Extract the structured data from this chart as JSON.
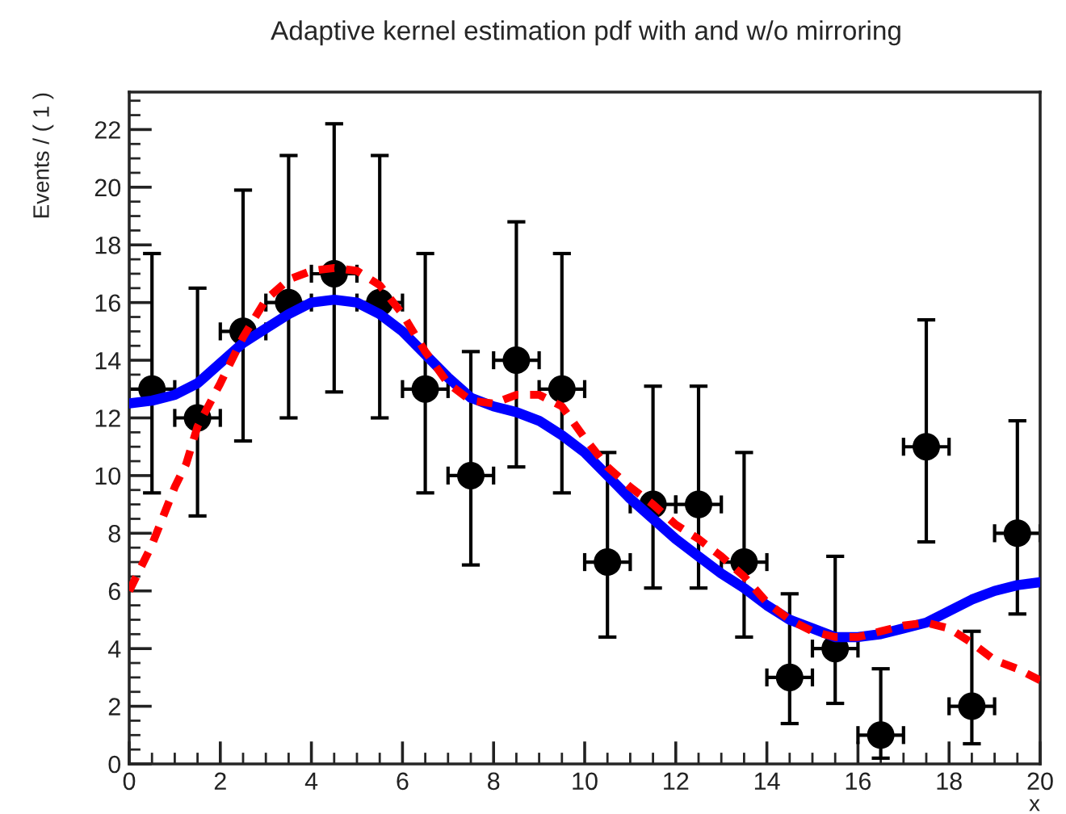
{
  "chart_data": {
    "type": "scatter",
    "title": "Adaptive kernel estimation pdf with and w/o mirroring",
    "xlabel": "x",
    "ylabel": "Events / ( 1 )",
    "xlim": [
      0,
      20
    ],
    "ylim": [
      0,
      23.3
    ],
    "xticks": [
      0,
      2,
      4,
      6,
      8,
      10,
      12,
      14,
      16,
      18,
      20
    ],
    "yticks": [
      0,
      2,
      4,
      6,
      8,
      10,
      12,
      14,
      16,
      18,
      20,
      22
    ],
    "grid": false,
    "legend": false,
    "series": [
      {
        "color": "#000000",
        "marker": "circle",
        "x": [
          0.5,
          1.5,
          2.5,
          3.5,
          4.5,
          5.5,
          6.5,
          7.5,
          8.5,
          9.5,
          10.5,
          11.5,
          12.5,
          13.5,
          14.5,
          15.5,
          16.5,
          17.5,
          18.5,
          19.5
        ],
        "values": [
          13,
          12,
          15,
          16,
          17,
          16,
          13,
          10,
          14,
          13,
          7,
          9,
          9,
          7,
          3,
          4,
          1,
          11,
          2,
          8
        ],
        "errors": [
          [
            9.4,
            17.7
          ],
          [
            8.6,
            16.5
          ],
          [
            11.2,
            19.9
          ],
          [
            12.0,
            21.1
          ],
          [
            12.9,
            22.2
          ],
          [
            12.0,
            21.1
          ],
          [
            9.4,
            17.7
          ],
          [
            6.9,
            14.3
          ],
          [
            10.3,
            18.8
          ],
          [
            9.4,
            17.7
          ],
          [
            4.4,
            10.8
          ],
          [
            6.1,
            13.1
          ],
          [
            6.1,
            13.1
          ],
          [
            4.4,
            10.8
          ],
          [
            1.4,
            5.9
          ],
          [
            2.1,
            7.2
          ],
          [
            0.2,
            3.3
          ],
          [
            7.7,
            15.4
          ],
          [
            0.7,
            4.6
          ],
          [
            5.2,
            11.9
          ]
        ],
        "xerrors": [
          0.5,
          0.5,
          0.5,
          0.5,
          0.5,
          0.5,
          0.5,
          0.5,
          0.5,
          0.5,
          0.5,
          0.5,
          0.5,
          0.5,
          0.5,
          0.5,
          0.5,
          0.5,
          0.5,
          0.5
        ]
      },
      {
        "type": "line",
        "color": "#0000ff",
        "line_style": "solid",
        "marker": "none",
        "x": [
          0,
          0.5,
          1,
          1.5,
          2,
          2.5,
          3,
          3.5,
          4,
          4.5,
          5,
          5.5,
          6,
          6.5,
          7,
          7.5,
          8,
          8.5,
          9,
          9.5,
          10,
          10.5,
          11,
          11.5,
          12,
          12.5,
          13,
          13.5,
          14,
          14.5,
          15,
          15.5,
          16,
          16.5,
          17,
          17.5,
          18,
          18.5,
          19,
          19.5,
          20
        ],
        "values": [
          12.5,
          12.6,
          12.8,
          13.2,
          13.9,
          14.6,
          15.1,
          15.6,
          16.0,
          16.1,
          16.0,
          15.6,
          15.0,
          14.2,
          13.4,
          12.7,
          12.4,
          12.2,
          11.9,
          11.4,
          10.8,
          10.0,
          9.2,
          8.5,
          7.8,
          7.2,
          6.6,
          6.1,
          5.5,
          5.0,
          4.7,
          4.4,
          4.4,
          4.5,
          4.7,
          4.9,
          5.3,
          5.7,
          6.0,
          6.2,
          6.3
        ]
      },
      {
        "type": "line",
        "color": "#ff0000",
        "line_style": "dashed",
        "marker": "none",
        "x": [
          0,
          0.25,
          0.5,
          0.75,
          1,
          1.25,
          1.5,
          2,
          2.5,
          3,
          3.5,
          4,
          4.5,
          5,
          5.5,
          6,
          6.5,
          7,
          7.5,
          8,
          8.5,
          9,
          9.5,
          10,
          10.5,
          11,
          11.5,
          12,
          12.5,
          13,
          13.5,
          14,
          14.5,
          15,
          15.5,
          16,
          16.5,
          17,
          17.5,
          18,
          18.5,
          19,
          19.5,
          20
        ],
        "values": [
          6.0,
          6.8,
          7.6,
          8.6,
          9.6,
          10.4,
          11.7,
          13.2,
          14.8,
          16.1,
          16.8,
          17.1,
          17.2,
          17.1,
          16.6,
          15.6,
          14.3,
          13.2,
          12.6,
          12.5,
          12.8,
          12.8,
          12.4,
          11.3,
          10.3,
          9.6,
          9.0,
          8.3,
          7.8,
          7.2,
          6.5,
          5.6,
          5.0,
          4.6,
          4.4,
          4.4,
          4.6,
          4.8,
          4.9,
          4.7,
          4.2,
          3.6,
          3.3,
          2.9
        ]
      }
    ]
  }
}
